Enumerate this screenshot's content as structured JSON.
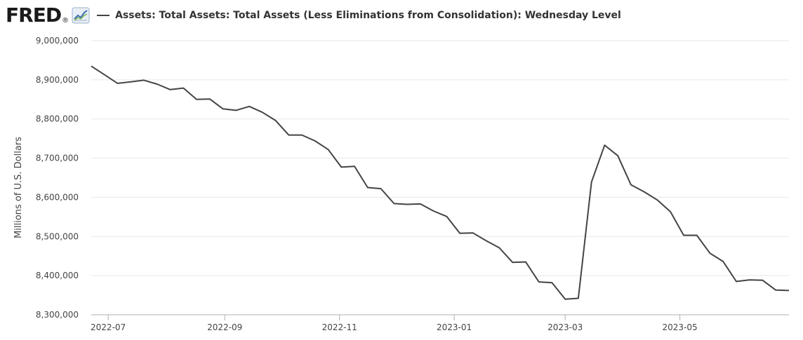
{
  "header": {
    "logo_text": "FRED",
    "logo_mark": "®",
    "logo_icon": "line-chart-icon"
  },
  "colors": {
    "series": "#444444",
    "grid": "#e6e6e6",
    "axis": "#b0b0b0",
    "text": "#444444"
  },
  "chart_data": {
    "type": "line",
    "title": "",
    "xlabel": "",
    "ylabel": "Millions of U.S. Dollars",
    "ylim": [
      8300000,
      9000000
    ],
    "yticks": [
      8300000,
      8400000,
      8500000,
      8600000,
      8700000,
      8800000,
      8900000,
      9000000
    ],
    "ytick_labels": [
      "8,300,000",
      "8,400,000",
      "8,500,000",
      "8,600,000",
      "8,700,000",
      "8,800,000",
      "8,900,000",
      "9,000,000"
    ],
    "xlim": [
      "2022-06-22",
      "2023-06-28"
    ],
    "xticks": [
      "2022-07-01",
      "2022-09-01",
      "2022-11-01",
      "2023-01-01",
      "2023-03-01",
      "2023-05-01"
    ],
    "xtick_labels": [
      "2022-07",
      "2022-09",
      "2022-11",
      "2023-01",
      "2023-03",
      "2023-05"
    ],
    "grid": true,
    "legend_position": "top-left",
    "series": [
      {
        "name": "Assets: Total Assets: Total Assets (Less Eliminations from Consolidation): Wednesday Level",
        "color": "#444444",
        "x": [
          "2022-06-22",
          "2022-06-29",
          "2022-07-06",
          "2022-07-13",
          "2022-07-20",
          "2022-07-27",
          "2022-08-03",
          "2022-08-10",
          "2022-08-17",
          "2022-08-24",
          "2022-08-31",
          "2022-09-07",
          "2022-09-14",
          "2022-09-21",
          "2022-09-28",
          "2022-10-05",
          "2022-10-12",
          "2022-10-19",
          "2022-10-26",
          "2022-11-02",
          "2022-11-09",
          "2022-11-16",
          "2022-11-23",
          "2022-11-30",
          "2022-12-07",
          "2022-12-14",
          "2022-12-21",
          "2022-12-28",
          "2023-01-04",
          "2023-01-11",
          "2023-01-18",
          "2023-01-25",
          "2023-02-01",
          "2023-02-08",
          "2023-02-15",
          "2023-02-22",
          "2023-03-01",
          "2023-03-08",
          "2023-03-15",
          "2023-03-22",
          "2023-03-29",
          "2023-04-05",
          "2023-04-12",
          "2023-04-19",
          "2023-04-26",
          "2023-05-03",
          "2023-05-10",
          "2023-05-17",
          "2023-05-24",
          "2023-05-31",
          "2023-06-07",
          "2023-06-14",
          "2023-06-21",
          "2023-06-28"
        ],
        "values": [
          8935000,
          8913000,
          8891000,
          8895000,
          8899000,
          8889000,
          8875000,
          8879000,
          8850000,
          8851000,
          8826000,
          8822000,
          8832000,
          8817000,
          8796000,
          8759000,
          8759000,
          8744000,
          8722000,
          8677000,
          8679000,
          8625000,
          8622000,
          8584000,
          8582000,
          8583000,
          8565000,
          8551000,
          8508000,
          8509000,
          8489000,
          8471000,
          8434000,
          8435000,
          8384000,
          8382000,
          8340000,
          8342000,
          8639000,
          8733000,
          8706000,
          8632000,
          8614000,
          8593000,
          8563000,
          8503000,
          8503000,
          8457000,
          8436000,
          8385000,
          8389000,
          8388000,
          8363000,
          8362000
        ]
      }
    ]
  }
}
